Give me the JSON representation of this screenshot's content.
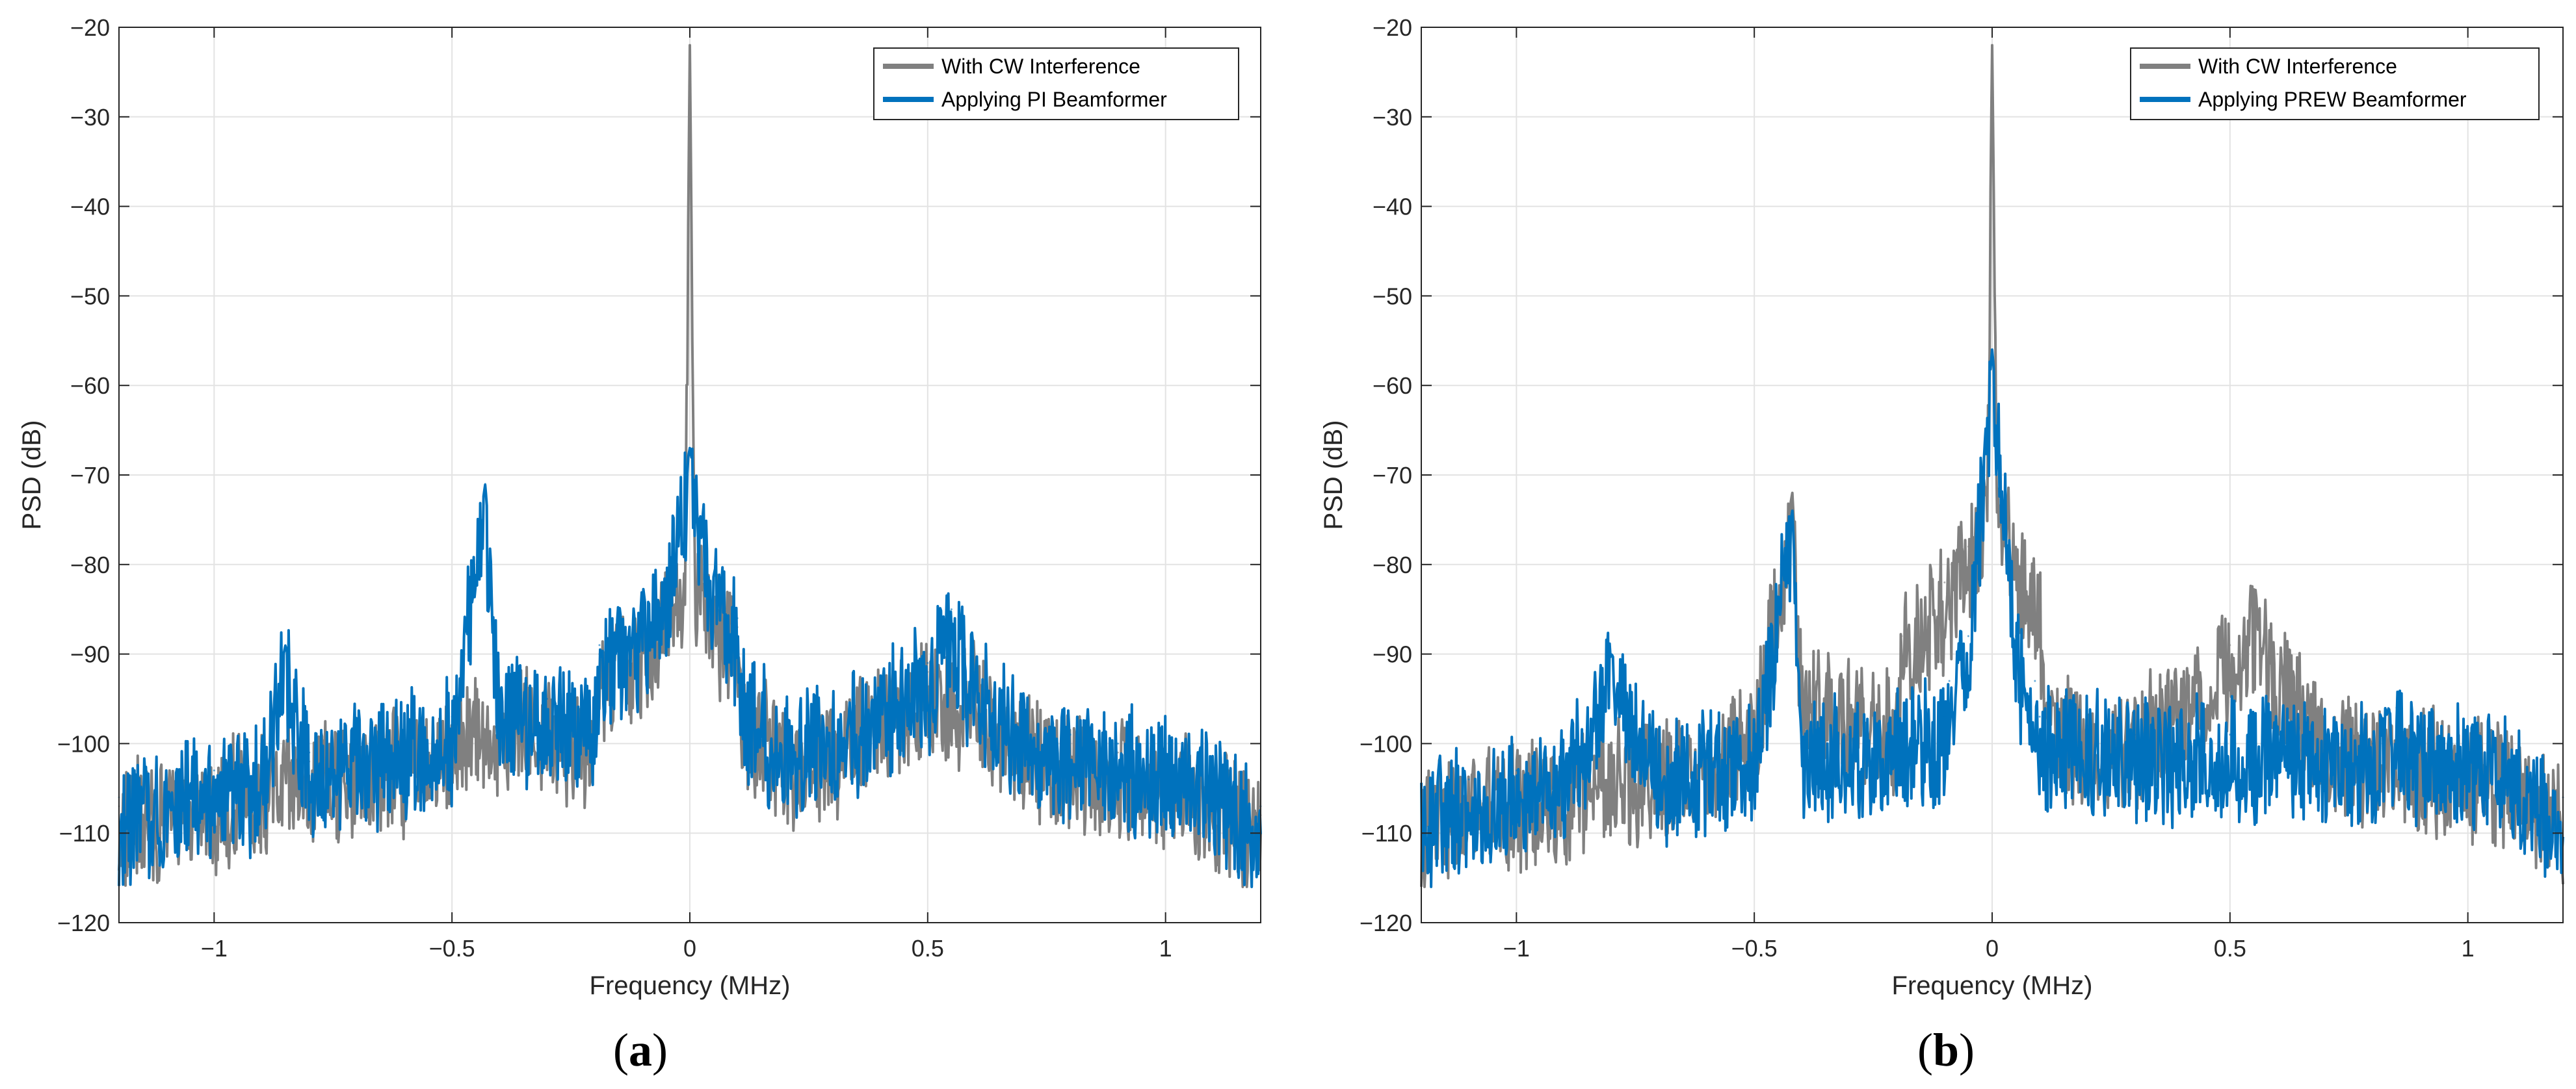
{
  "chart_data": [
    {
      "type": "line",
      "panel": "a",
      "caption_label": "a",
      "xlabel": "Frequency (MHz)",
      "ylabel": "PSD (dB)",
      "xlim": [
        -1.2,
        1.2
      ],
      "ylim": [
        -120,
        -20
      ],
      "xticks": [
        -1,
        -0.5,
        0,
        0.5,
        1
      ],
      "xtick_labels": [
        "-1",
        "-0.5",
        "0",
        "0.5",
        "1"
      ],
      "yticks": [
        -120,
        -110,
        -100,
        -90,
        -80,
        -70,
        -60,
        -50,
        -40,
        -30,
        -20
      ],
      "ytick_labels": [
        "-120",
        "-110",
        "-100",
        "-90",
        "-80",
        "-70",
        "-60",
        "-50",
        "-40",
        "-30",
        "-20"
      ],
      "grid": true,
      "legend_position": "top-right",
      "series": [
        {
          "name": "With CW Interference",
          "color": "#808080",
          "x": [
            -1.2,
            -1.1,
            -1.0,
            -0.9,
            -0.8,
            -0.7,
            -0.6,
            -0.5,
            -0.4,
            -0.3,
            -0.2,
            -0.19,
            -0.1,
            -0.05,
            -0.01,
            0.0,
            0.01,
            0.05,
            0.1,
            0.11,
            0.2,
            0.3,
            0.4,
            0.5,
            0.6,
            0.7,
            0.8,
            0.9,
            1.0,
            1.1,
            1.2
          ],
          "values": [
            -107,
            -105,
            -104,
            -103,
            -102,
            -101,
            -100,
            -98,
            -95,
            -96,
            -97,
            -90,
            -87,
            -84,
            -80,
            -22,
            -80,
            -84,
            -87,
            -95,
            -99,
            -99,
            -95,
            -92,
            -93,
            -99,
            -100,
            -101,
            -102,
            -104,
            -108
          ]
        },
        {
          "name": "Applying PI Beamformer",
          "color": "#0072BD",
          "x": [
            -1.2,
            -1.1,
            -1.0,
            -0.9,
            -0.85,
            -0.8,
            -0.7,
            -0.6,
            -0.5,
            -0.43,
            -0.4,
            -0.3,
            -0.2,
            -0.19,
            -0.1,
            -0.05,
            0.0,
            0.05,
            0.1,
            0.11,
            0.2,
            0.3,
            0.4,
            0.5,
            0.55,
            0.6,
            0.7,
            0.8,
            0.9,
            1.0,
            1.1,
            1.2
          ],
          "values": [
            -106,
            -104,
            -103,
            -102,
            -89,
            -101,
            -100,
            -99,
            -97,
            -71,
            -94,
            -95,
            -96,
            -89,
            -86,
            -82,
            -67,
            -82,
            -86,
            -94,
            -98,
            -98,
            -94,
            -91,
            -85,
            -92,
            -98,
            -99,
            -100,
            -101,
            -103,
            -107
          ]
        }
      ]
    },
    {
      "type": "line",
      "panel": "b",
      "caption_label": "b",
      "xlabel": "Frequency (MHz)",
      "ylabel": "PSD (dB)",
      "xlim": [
        -1.2,
        1.2
      ],
      "ylim": [
        -120,
        -20
      ],
      "xticks": [
        -1,
        -0.5,
        0,
        0.5,
        1
      ],
      "xtick_labels": [
        "-1",
        "-0.5",
        "0",
        "0.5",
        "1"
      ],
      "yticks": [
        -120,
        -110,
        -100,
        -90,
        -80,
        -70,
        -60,
        -50,
        -40,
        -30,
        -20
      ],
      "ytick_labels": [
        "-120",
        "-110",
        "-100",
        "-90",
        "-80",
        "-70",
        "-60",
        "-50",
        "-40",
        "-30",
        "-20"
      ],
      "grid": true,
      "legend_position": "top-right",
      "series": [
        {
          "name": "With CW Interference",
          "color": "#808080",
          "x": [
            -1.2,
            -1.1,
            -1.0,
            -0.9,
            -0.8,
            -0.7,
            -0.6,
            -0.5,
            -0.42,
            -0.4,
            -0.3,
            -0.2,
            -0.19,
            -0.1,
            -0.05,
            -0.01,
            0.0,
            0.01,
            0.05,
            0.1,
            0.11,
            0.2,
            0.3,
            0.4,
            0.5,
            0.55,
            0.6,
            0.7,
            0.8,
            0.9,
            1.0,
            1.1,
            1.2
          ],
          "values": [
            -107,
            -105,
            -104,
            -103,
            -102,
            -101,
            -100,
            -97,
            -72,
            -93,
            -95,
            -96,
            -88,
            -82,
            -78,
            -70,
            -22,
            -70,
            -78,
            -82,
            -95,
            -98,
            -97,
            -93,
            -89,
            -85,
            -90,
            -97,
            -99,
            -100,
            -101,
            -102,
            -106
          ]
        },
        {
          "name": "Applying PREW Beamformer",
          "color": "#0072BD",
          "x": [
            -1.2,
            -1.1,
            -1.0,
            -0.9,
            -0.85,
            -0.8,
            -0.7,
            -0.6,
            -0.5,
            -0.42,
            -0.4,
            -0.3,
            -0.2,
            -0.1,
            -0.09,
            -0.05,
            0.0,
            0.05,
            0.09,
            0.1,
            0.2,
            0.3,
            0.4,
            0.5,
            0.6,
            0.7,
            0.8,
            0.85,
            0.9,
            1.0,
            1.1,
            1.2
          ],
          "values": [
            -106,
            -104,
            -103,
            -102,
            -97,
            -90,
            -101,
            -100,
            -100,
            -74,
            -99,
            -99,
            -98,
            -97,
            -93,
            -88,
            -56,
            -88,
            -93,
            -97,
            -98,
            -99,
            -99,
            -99,
            -99,
            -100,
            -100,
            -96,
            -100,
            -100,
            -102,
            -106
          ]
        }
      ]
    }
  ]
}
